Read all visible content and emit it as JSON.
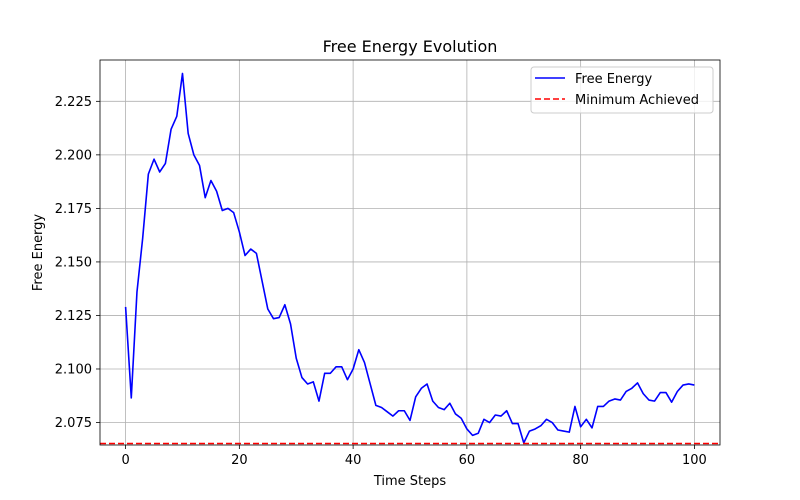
{
  "chart_data": {
    "type": "line",
    "title": "Free Energy Evolution",
    "xlabel": "Time Steps",
    "ylabel": "Free Energy",
    "xlim": [
      -4.5,
      104.5
    ],
    "ylim": [
      2.0645,
      2.2443
    ],
    "xticks": [
      0,
      20,
      40,
      60,
      80,
      100
    ],
    "xtick_labels": [
      "0",
      "20",
      "40",
      "60",
      "80",
      "100"
    ],
    "yticks": [
      2.075,
      2.1,
      2.125,
      2.15,
      2.175,
      2.2,
      2.225
    ],
    "ytick_labels": [
      "2.075",
      "2.100",
      "2.125",
      "2.150",
      "2.175",
      "2.200",
      "2.225"
    ],
    "grid": true,
    "legend_position": "top-right",
    "series": [
      {
        "name": "Free Energy",
        "color": "#0000ff",
        "style": "solid",
        "x": [
          0,
          1,
          2,
          3,
          4,
          5,
          6,
          7,
          8,
          9,
          10,
          11,
          12,
          13,
          14,
          15,
          16,
          17,
          18,
          19,
          20,
          21,
          22,
          23,
          24,
          25,
          26,
          27,
          28,
          29,
          30,
          31,
          32,
          33,
          34,
          35,
          36,
          37,
          38,
          39,
          40,
          41,
          42,
          43,
          44,
          45,
          46,
          47,
          48,
          49,
          50,
          51,
          52,
          53,
          54,
          55,
          56,
          57,
          58,
          59,
          60,
          61,
          62,
          63,
          64,
          65,
          66,
          67,
          68,
          69,
          70,
          71,
          72,
          73,
          74,
          75,
          76,
          77,
          78,
          79,
          80,
          81,
          82,
          83,
          84,
          85,
          86,
          87,
          88,
          89,
          90,
          91,
          92,
          93,
          94,
          95,
          96,
          97,
          98,
          99,
          100
        ],
        "values": [
          2.129,
          2.0865,
          2.136,
          2.161,
          2.191,
          2.198,
          2.192,
          2.196,
          2.212,
          2.218,
          2.238,
          2.21,
          2.2,
          2.195,
          2.18,
          2.188,
          2.183,
          2.174,
          2.175,
          2.173,
          2.164,
          2.153,
          2.156,
          2.154,
          2.141,
          2.128,
          2.1235,
          2.124,
          2.13,
          2.121,
          2.105,
          2.096,
          2.093,
          2.094,
          2.085,
          2.098,
          2.098,
          2.101,
          2.101,
          2.095,
          2.1,
          2.109,
          2.103,
          2.093,
          2.083,
          2.082,
          2.08,
          2.078,
          2.0805,
          2.0805,
          2.076,
          2.087,
          2.091,
          2.093,
          2.085,
          2.082,
          2.081,
          2.084,
          2.079,
          2.077,
          2.072,
          2.069,
          2.07,
          2.0765,
          2.075,
          2.0785,
          2.078,
          2.0805,
          2.0745,
          2.0745,
          2.0655,
          2.071,
          2.072,
          2.0735,
          2.0765,
          2.075,
          2.0715,
          2.071,
          2.0705,
          2.0825,
          2.073,
          2.0765,
          2.0725,
          2.0825,
          2.0825,
          2.085,
          2.086,
          2.0855,
          2.0895,
          2.091,
          2.0935,
          2.0885,
          2.0855,
          2.085,
          2.089,
          2.089,
          2.0845,
          2.0895,
          2.0925,
          2.093,
          2.0925
        ]
      },
      {
        "name": "Minimum Achieved",
        "color": "#ff0000",
        "style": "dashed",
        "hline": 2.0652
      }
    ]
  }
}
